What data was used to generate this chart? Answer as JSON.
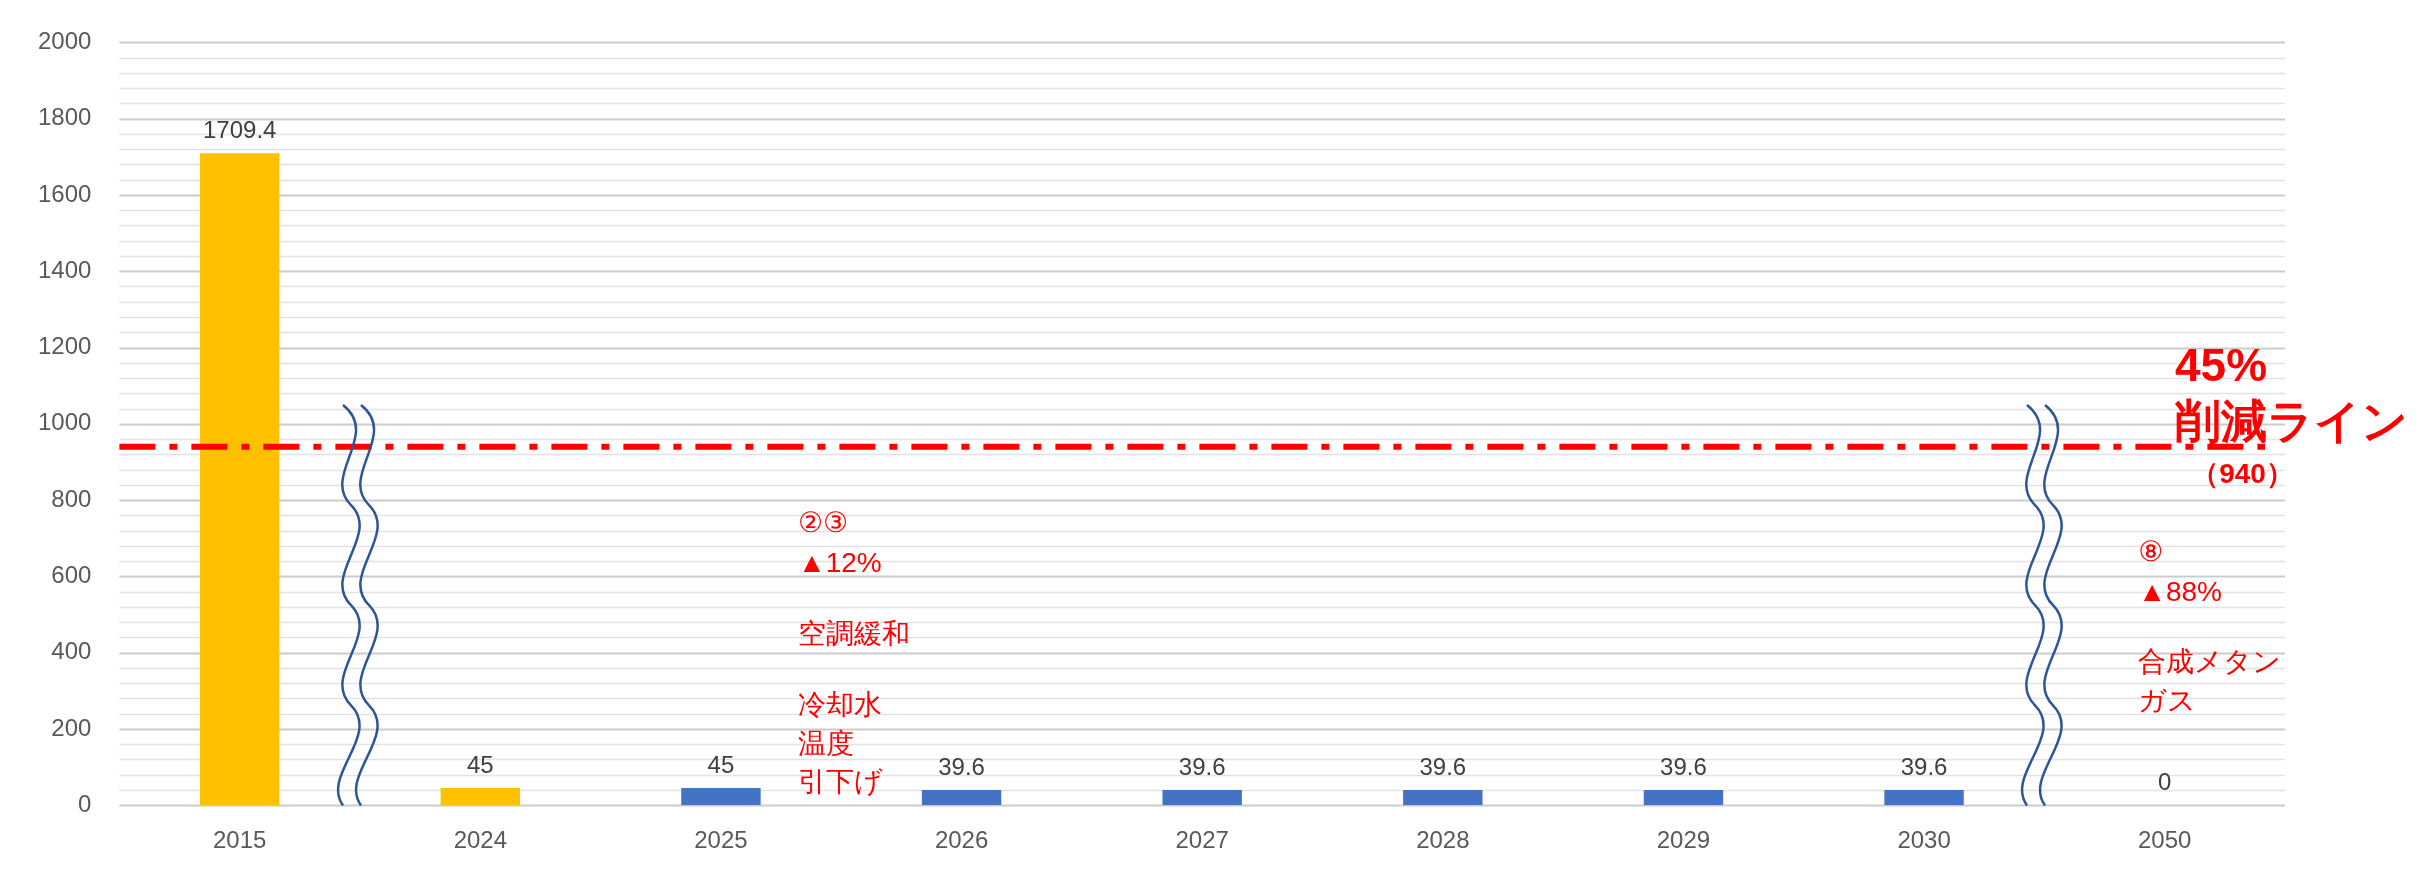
{
  "chart_data": {
    "type": "bar",
    "categories": [
      "2015",
      "2024",
      "2025",
      "2026",
      "2027",
      "2028",
      "2029",
      "2030",
      "2050"
    ],
    "values": [
      1709.4,
      45,
      45,
      39.6,
      39.6,
      39.6,
      39.6,
      39.6,
      0
    ],
    "colors": [
      "#ffc000",
      "#ffc000",
      "#4472c4",
      "#4472c4",
      "#4472c4",
      "#4472c4",
      "#4472c4",
      "#4472c4",
      "#4472c4"
    ],
    "ylim": [
      0,
      2000
    ],
    "yticks": [
      0,
      {
        "value": 40,
        "label": null
      },
      {
        "value": 80,
        "label": null
      },
      {
        "value": 120,
        "label": null
      },
      {
        "value": 160,
        "label": null
      },
      200,
      {
        "value": 240,
        "label": null
      },
      {
        "value": 280,
        "label": null
      },
      {
        "value": 320,
        "label": null
      },
      {
        "value": 360,
        "label": null
      },
      400,
      {
        "value": 440,
        "label": null
      },
      {
        "value": 480,
        "label": null
      },
      {
        "value": 520,
        "label": null
      },
      {
        "value": 560,
        "label": null
      },
      600,
      {
        "value": 640,
        "label": null
      },
      {
        "value": 680,
        "label": null
      },
      {
        "value": 720,
        "label": null
      },
      {
        "value": 760,
        "label": null
      },
      800,
      {
        "value": 840,
        "label": null
      },
      {
        "value": 880,
        "label": null
      },
      {
        "value": 920,
        "label": null
      },
      {
        "value": 960,
        "label": null
      },
      1000,
      {
        "value": 1040,
        "label": null
      },
      {
        "value": 1080,
        "label": null
      },
      {
        "value": 1120,
        "label": null
      },
      {
        "value": 1160,
        "label": null
      },
      1200,
      {
        "value": 1240,
        "label": null
      },
      {
        "value": 1280,
        "label": null
      },
      {
        "value": 1320,
        "label": null
      },
      {
        "value": 1360,
        "label": null
      },
      1400,
      {
        "value": 1440,
        "label": null
      },
      {
        "value": 1480,
        "label": null
      },
      {
        "value": 1520,
        "label": null
      },
      {
        "value": 1560,
        "label": null
      },
      1600,
      {
        "value": 1640,
        "label": null
      },
      {
        "value": 1680,
        "label": null
      },
      {
        "value": 1720,
        "label": null
      },
      {
        "value": 1760,
        "label": null
      },
      1800,
      {
        "value": 1840,
        "label": null
      },
      {
        "value": 1880,
        "label": null
      },
      {
        "value": 1920,
        "label": null
      },
      {
        "value": 1960,
        "label": null
      },
      2000
    ],
    "grid": "y",
    "data_labels": true,
    "ref_lines": [
      {
        "axis": "y",
        "value": 940,
        "label": "45%\n削減ライン",
        "color": "#ff0000",
        "line_style": "dashdot"
      }
    ],
    "annotations": [
      "（940）",
      "②③\n▲12%",
      "空調緩和",
      "冷却水",
      "温度",
      "引下げ",
      "⑧\n▲88%",
      "合成メタン",
      "ガス"
    ]
  }
}
